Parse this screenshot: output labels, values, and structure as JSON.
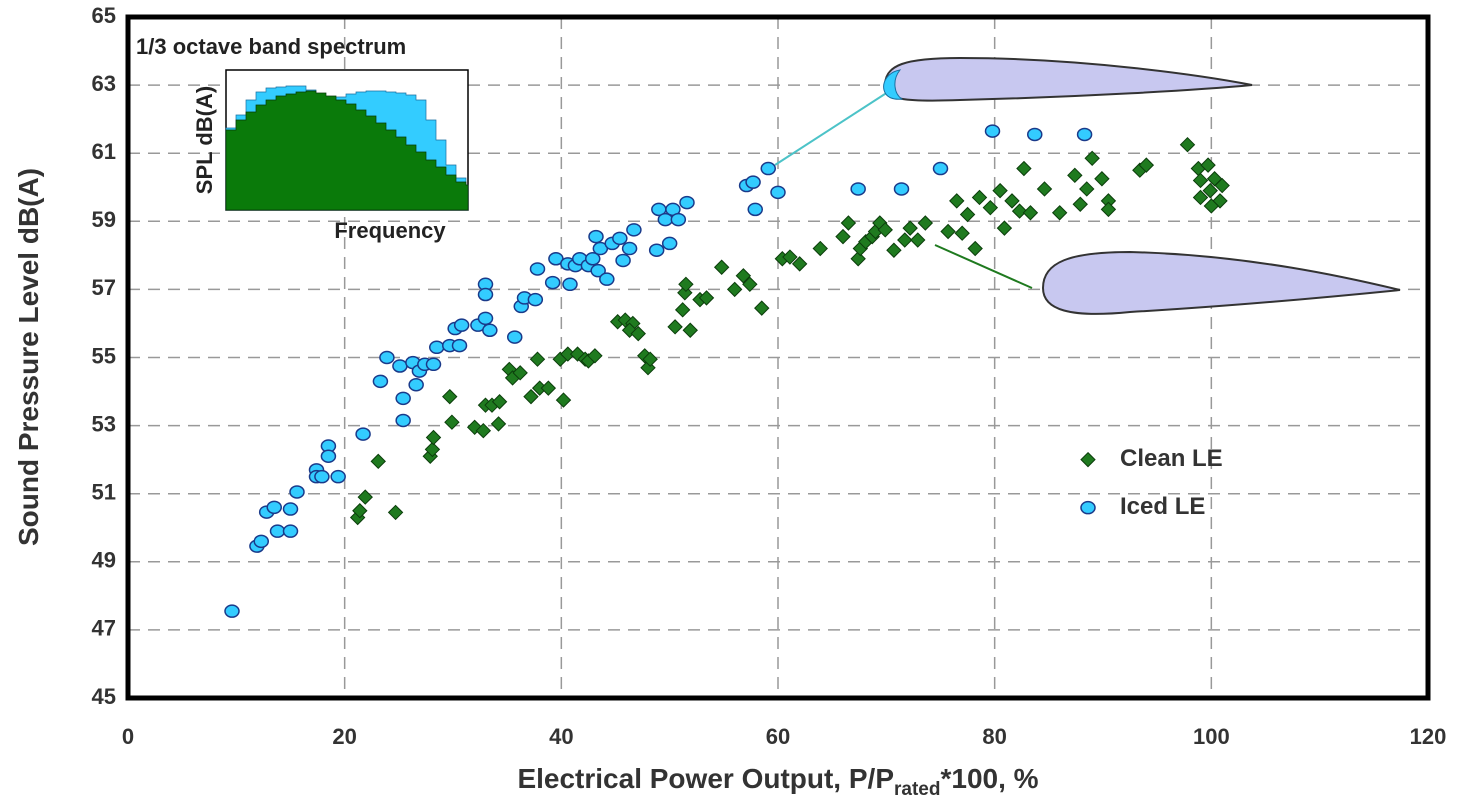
{
  "chart_data": {
    "type": "scatter",
    "xlabel": "Electrical Power Output, P/P",
    "xlabel_sub": "rated",
    "xlabel_tail": "*100, %",
    "ylabel": "Sound Pressure Level dB(A)",
    "inset_title": "1/3 octave band spectrum",
    "inset_ylabel": "SPL dB(A)",
    "inset_xlabel": "Frequency",
    "xlim": [
      0,
      120
    ],
    "xticks": [
      0,
      20,
      40,
      60,
      80,
      100,
      120
    ],
    "ylim": [
      45,
      65
    ],
    "yticks": [
      45,
      47,
      49,
      51,
      53,
      55,
      57,
      59,
      61,
      63,
      65
    ],
    "grid": true,
    "legend": "right",
    "series": [
      {
        "name": "Clean LE",
        "color": "#1f7a1f",
        "marker": "diamond",
        "x": [
          21.2,
          21.4,
          21.9,
          23.1,
          24.7,
          27.9,
          28.1,
          28.2,
          29.7,
          29.9,
          32.0,
          32.8,
          33.0,
          33.6,
          34.3,
          34.2,
          35.2,
          35.5,
          36.2,
          37.2,
          37.8,
          38.0,
          38.8,
          39.9,
          40.2,
          40.6,
          41.5,
          42.2,
          42.5,
          43.1,
          45.2,
          45.9,
          46.6,
          46.3,
          47.1,
          47.7,
          48.0,
          48.2,
          50.5,
          51.2,
          51.9,
          51.4,
          51.5,
          52.8,
          53.4,
          54.8,
          56.0,
          56.8,
          57.4,
          58.5,
          60.4,
          61.1,
          62.0,
          63.9,
          66.0,
          66.5,
          67.4,
          67.6,
          68.1,
          68.7,
          69.0,
          69.4,
          69.9,
          70.7,
          71.7,
          72.2,
          72.9,
          73.6,
          75.7,
          76.5,
          77.0,
          77.5,
          78.2,
          78.6,
          79.6,
          80.5,
          80.9,
          81.6,
          82.3,
          82.7,
          83.3,
          84.6,
          86.0,
          87.4,
          87.9,
          88.5,
          89.0,
          89.9,
          90.5,
          90.5,
          93.4,
          94.0,
          97.8,
          98.8,
          99.0,
          99.0,
          99.7,
          99.9,
          100.3,
          100.8,
          101.0,
          100.0
        ],
        "values": [
          50.3,
          50.5,
          50.9,
          51.95,
          50.45,
          52.1,
          52.3,
          52.65,
          53.85,
          53.1,
          52.95,
          52.85,
          53.6,
          53.6,
          53.7,
          53.05,
          54.65,
          54.4,
          54.55,
          53.85,
          54.95,
          54.1,
          54.1,
          54.95,
          53.75,
          55.1,
          55.1,
          54.95,
          54.9,
          55.05,
          56.05,
          56.1,
          56.0,
          55.8,
          55.7,
          55.05,
          54.7,
          54.95,
          55.9,
          56.4,
          55.8,
          56.9,
          57.15,
          56.7,
          56.75,
          57.65,
          57.0,
          57.4,
          57.15,
          56.45,
          57.9,
          57.95,
          57.75,
          58.2,
          58.55,
          58.95,
          57.9,
          58.2,
          58.4,
          58.55,
          58.7,
          58.95,
          58.75,
          58.15,
          58.45,
          58.8,
          58.45,
          58.95,
          58.7,
          59.6,
          58.65,
          59.2,
          58.2,
          59.7,
          59.4,
          59.9,
          58.8,
          59.6,
          59.3,
          60.55,
          59.25,
          59.95,
          59.25,
          60.35,
          59.5,
          59.95,
          60.85,
          60.25,
          59.6,
          59.35,
          60.5,
          60.65,
          61.25,
          60.55,
          60.2,
          59.7,
          60.65,
          59.9,
          60.25,
          59.6,
          60.05,
          59.45
        ]
      },
      {
        "name": "Iced LE",
        "color": "#33ccff",
        "marker": "circle",
        "x": [
          9.6,
          11.9,
          12.3,
          12.8,
          13.5,
          13.8,
          15.0,
          15.0,
          15.6,
          17.4,
          17.4,
          17.9,
          18.5,
          18.5,
          19.4,
          21.7,
          23.3,
          23.9,
          25.1,
          25.4,
          25.4,
          26.3,
          26.6,
          26.9,
          27.4,
          28.2,
          28.5,
          29.7,
          30.6,
          30.2,
          30.8,
          32.3,
          33.0,
          33.4,
          33.0,
          33.0,
          35.7,
          36.3,
          36.6,
          37.6,
          37.8,
          39.5,
          39.2,
          40.6,
          40.8,
          41.3,
          41.7,
          42.5,
          42.9,
          43.2,
          43.4,
          43.6,
          44.2,
          44.7,
          45.4,
          45.7,
          46.3,
          46.7,
          48.8,
          49.0,
          49.6,
          50.3,
          50.8,
          50.0,
          51.6,
          57.1,
          57.7,
          57.9,
          59.1,
          60.0,
          67.4,
          71.4,
          75.0,
          79.8,
          83.7,
          88.3
        ],
        "values": [
          47.55,
          49.46,
          49.6,
          50.46,
          50.6,
          49.9,
          49.9,
          50.55,
          51.05,
          51.7,
          51.5,
          51.5,
          52.4,
          52.1,
          51.5,
          52.75,
          54.3,
          55.0,
          54.75,
          53.8,
          53.15,
          54.85,
          54.2,
          54.6,
          54.8,
          54.8,
          55.3,
          55.35,
          55.35,
          55.85,
          55.95,
          55.95,
          56.15,
          55.8,
          57.15,
          56.85,
          55.6,
          56.5,
          56.75,
          56.7,
          57.6,
          57.9,
          57.2,
          57.75,
          57.15,
          57.7,
          57.9,
          57.7,
          57.9,
          58.55,
          57.55,
          58.2,
          57.3,
          58.35,
          58.5,
          57.85,
          58.2,
          58.75,
          58.15,
          59.35,
          59.05,
          59.35,
          59.05,
          58.35,
          59.55,
          60.05,
          60.15,
          59.35,
          60.55,
          59.85,
          59.95,
          59.95,
          60.55,
          61.65,
          61.55,
          61.55
        ]
      }
    ]
  }
}
